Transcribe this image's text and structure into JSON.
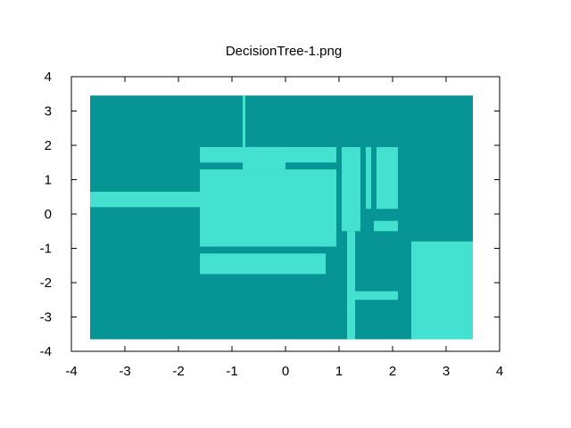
{
  "chart_data": {
    "type": "heatmap",
    "title": "DecisionTree-1.png",
    "xlabel": "",
    "ylabel": "",
    "xlim": [
      -4,
      4
    ],
    "ylim": [
      -4,
      4
    ],
    "xticks": [
      -4,
      -3,
      -2,
      -1,
      0,
      1,
      2,
      3,
      4
    ],
    "yticks": [
      -4,
      -3,
      -2,
      -1,
      0,
      1,
      2,
      3,
      4
    ],
    "grid": false,
    "legend": "none",
    "colors": {
      "class_0": "#069494",
      "class_1": "#44e0d0",
      "axes": "#000000",
      "background": "#ffffff"
    },
    "domain": {
      "x": [
        -3.65,
        3.5
      ],
      "y": [
        -3.65,
        3.45
      ],
      "class": "class_0"
    },
    "regions": [
      {
        "x": [
          -3.65,
          -1.6
        ],
        "y": [
          0.2,
          0.65
        ],
        "class": "class_1"
      },
      {
        "x": [
          -1.6,
          0.95
        ],
        "y": [
          -0.95,
          1.3
        ],
        "class": "class_1"
      },
      {
        "x": [
          -1.6,
          0.95
        ],
        "y": [
          1.5,
          1.95
        ],
        "class": "class_1"
      },
      {
        "x": [
          -0.8,
          -0.75
        ],
        "y": [
          1.95,
          3.45
        ],
        "class": "class_1"
      },
      {
        "x": [
          -0.8,
          0.0
        ],
        "y": [
          1.3,
          1.95
        ],
        "class": "class_1"
      },
      {
        "x": [
          -1.6,
          -0.75
        ],
        "y": [
          1.5,
          1.55
        ],
        "class": "class_1"
      },
      {
        "x": [
          -1.6,
          0.75
        ],
        "y": [
          -1.75,
          -1.15
        ],
        "class": "class_1"
      },
      {
        "x": [
          1.05,
          1.4
        ],
        "y": [
          -0.5,
          1.95
        ],
        "class": "class_1"
      },
      {
        "x": [
          1.15,
          1.3
        ],
        "y": [
          -3.65,
          -0.5
        ],
        "class": "class_1"
      },
      {
        "x": [
          1.3,
          2.1
        ],
        "y": [
          -2.5,
          -2.25
        ],
        "class": "class_1"
      },
      {
        "x": [
          1.5,
          1.6
        ],
        "y": [
          0.15,
          1.95
        ],
        "class": "class_1"
      },
      {
        "x": [
          1.7,
          2.1
        ],
        "y": [
          0.15,
          1.95
        ],
        "class": "class_1"
      },
      {
        "x": [
          1.65,
          2.1
        ],
        "y": [
          -0.5,
          -0.2
        ],
        "class": "class_1"
      },
      {
        "x": [
          2.35,
          3.5
        ],
        "y": [
          -3.65,
          -0.8
        ],
        "class": "class_1"
      }
    ]
  }
}
